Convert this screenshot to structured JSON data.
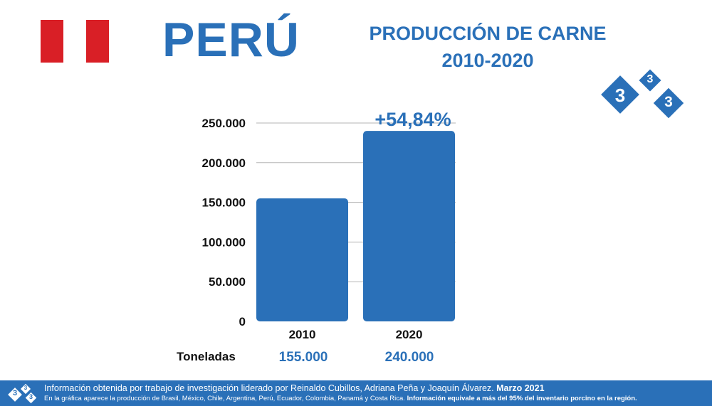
{
  "header": {
    "country": "PERÚ",
    "title_line1": "PRODUCCIÓN DE CARNE",
    "title_line2": "2010-2020",
    "flag_colors": [
      "#d91f26",
      "#ffffff",
      "#d91f26"
    ],
    "logo_digits": [
      "3",
      "3",
      "3"
    ]
  },
  "chart_data": {
    "type": "bar",
    "categories": [
      "2010",
      "2020"
    ],
    "values": [
      155000,
      240000
    ],
    "ylim": [
      0,
      250000
    ],
    "yticks": [
      0,
      50000,
      100000,
      150000,
      200000,
      250000
    ],
    "ytick_labels": [
      "0",
      "50.000",
      "100.000",
      "150.000",
      "200.000",
      "250.000"
    ],
    "annotation": "+54,84%",
    "bar_color": "#2a70b8",
    "grid": true,
    "title": "PRODUCCIÓN DE CARNE 2010-2020"
  },
  "values_row": {
    "label": "Toneladas",
    "values": [
      "155.000",
      "240.000"
    ]
  },
  "footer": {
    "line1_main": "Información obtenida por trabajo de investigación liderado por Reinaldo Cubillos, Adriana Peña y Joaquín Álvarez.",
    "line1_date": "Marzo 2021",
    "line2_main": "En la gráfica aparece la producción de Brasil, México, Chile, Argentina, Perú, Ecuador, Colombia, Panamá y Costa Rica.",
    "line2_bold": "Información equivale a más del 95% del inventario porcino en la región."
  }
}
